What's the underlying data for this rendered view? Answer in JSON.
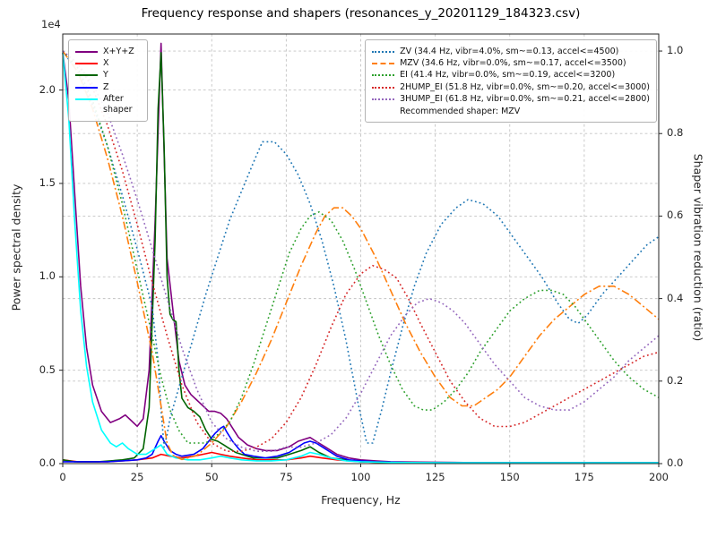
{
  "figure": {
    "title": "Frequency response and shapers (resonances_y_20201129_184323.csv)",
    "xlabel": "Frequency, Hz",
    "ylabel_left": "Power spectral density",
    "ylabel_right": "Shaper vibration reduction (ratio)",
    "offset_text": "1e4"
  },
  "legend_psd": {
    "items": [
      {
        "label": "X+Y+Z",
        "color": "#800080",
        "style": "solid"
      },
      {
        "label": "X",
        "color": "#ff0000",
        "style": "solid"
      },
      {
        "label": "Y",
        "color": "#006400",
        "style": "solid"
      },
      {
        "label": "Z",
        "color": "#0000ff",
        "style": "solid"
      },
      {
        "label": "After shaper",
        "color": "#00ffff",
        "style": "solid"
      }
    ]
  },
  "legend_shapers": {
    "items": [
      {
        "label": "ZV (34.4 Hz, vibr=4.0%, sm~=0.13, accel<=4500)",
        "color": "#1f77b4",
        "style": "dotted"
      },
      {
        "label": "MZV (34.6 Hz, vibr=0.0%, sm~=0.17, accel<=3500)",
        "color": "#ff7f0e",
        "style": "dashdot"
      },
      {
        "label": "EI (41.4 Hz, vibr=0.0%, sm~=0.19, accel<=3200)",
        "color": "#2ca02c",
        "style": "dotted"
      },
      {
        "label": "2HUMP_EI (51.8 Hz, vibr=0.0%, sm~=0.20, accel<=3000)",
        "color": "#d62728",
        "style": "dotted"
      },
      {
        "label": "3HUMP_EI (61.8 Hz, vibr=0.0%, sm~=0.21, accel<=2800)",
        "color": "#9467bd",
        "style": "dotted"
      }
    ],
    "footer": "Recommended shaper: MZV"
  },
  "chart_data": {
    "type": "line",
    "title": "Frequency response and shapers (resonances_y_20201129_184323.csv)",
    "xlabel": "Frequency, Hz",
    "ylabel_left": "Power spectral density (1e4)",
    "ylabel_right": "Shaper vibration reduction (ratio)",
    "x_range": [
      0,
      200
    ],
    "x_ticks": [
      0,
      25,
      50,
      75,
      100,
      125,
      150,
      175,
      200
    ],
    "y_left_range": [
      0,
      2.3
    ],
    "y_left_ticks": [
      0,
      0.5,
      1.0,
      1.5,
      2.0
    ],
    "y_left_scale": "1e4",
    "y_right_range": [
      0,
      1.0413
    ],
    "y_right_ticks": [
      0,
      0.2,
      0.4,
      0.6,
      0.8,
      1.0
    ],
    "grid": true,
    "series": [
      {
        "name": "X+Y+Z",
        "axis": "left",
        "color": "#800080",
        "style": "solid",
        "x": [
          0,
          2,
          4,
          6,
          8,
          10,
          13,
          16,
          19,
          21,
          23,
          25,
          27,
          29,
          31,
          33,
          35,
          37,
          39,
          41,
          43,
          45,
          47,
          49,
          51,
          53,
          55,
          57,
          59,
          62,
          65,
          68,
          72,
          76,
          79,
          81,
          83,
          85,
          88,
          92,
          96,
          100,
          105,
          110,
          120,
          140,
          170,
          200
        ],
        "y": [
          2.2,
          1.95,
          1.45,
          0.95,
          0.62,
          0.42,
          0.28,
          0.22,
          0.24,
          0.26,
          0.23,
          0.2,
          0.24,
          0.5,
          1.3,
          2.25,
          1.1,
          0.82,
          0.55,
          0.42,
          0.37,
          0.34,
          0.31,
          0.28,
          0.28,
          0.27,
          0.24,
          0.19,
          0.14,
          0.1,
          0.08,
          0.07,
          0.07,
          0.09,
          0.12,
          0.13,
          0.14,
          0.12,
          0.09,
          0.05,
          0.03,
          0.02,
          0.015,
          0.01,
          0.008,
          0.005,
          0.005,
          0.005
        ]
      },
      {
        "name": "X",
        "axis": "left",
        "color": "#ff0000",
        "style": "solid",
        "x": [
          0,
          5,
          10,
          15,
          20,
          25,
          30,
          33,
          36,
          40,
          44,
          47,
          50,
          53,
          56,
          60,
          65,
          70,
          75,
          80,
          83,
          87,
          92,
          100,
          110,
          130,
          160,
          200
        ],
        "y": [
          0.02,
          0.01,
          0.01,
          0.01,
          0.015,
          0.02,
          0.03,
          0.05,
          0.04,
          0.03,
          0.04,
          0.05,
          0.06,
          0.05,
          0.04,
          0.03,
          0.02,
          0.02,
          0.02,
          0.03,
          0.04,
          0.03,
          0.02,
          0.01,
          0.005,
          0.005,
          0.005,
          0.005
        ]
      },
      {
        "name": "Y",
        "axis": "left",
        "color": "#006400",
        "style": "solid",
        "x": [
          0,
          4,
          8,
          12,
          16,
          20,
          24,
          27,
          29,
          31,
          32,
          33,
          34,
          35,
          36,
          37,
          38,
          39,
          40,
          42,
          44,
          46,
          48,
          50,
          52,
          54,
          56,
          58,
          60,
          64,
          68,
          72,
          76,
          80,
          83,
          86,
          90,
          95,
          100,
          110,
          130,
          160,
          200
        ],
        "y": [
          0.02,
          0.01,
          0.01,
          0.01,
          0.015,
          0.02,
          0.03,
          0.08,
          0.3,
          1.2,
          1.9,
          2.2,
          1.7,
          1.0,
          0.8,
          0.77,
          0.76,
          0.5,
          0.35,
          0.3,
          0.28,
          0.25,
          0.18,
          0.13,
          0.12,
          0.1,
          0.08,
          0.06,
          0.05,
          0.03,
          0.03,
          0.03,
          0.05,
          0.07,
          0.09,
          0.06,
          0.03,
          0.02,
          0.01,
          0.005,
          0.005,
          0.005,
          0.005
        ]
      },
      {
        "name": "Z",
        "axis": "left",
        "color": "#0000ff",
        "style": "solid",
        "x": [
          0,
          5,
          10,
          15,
          20,
          25,
          28,
          30,
          32,
          33,
          34,
          36,
          38,
          40,
          44,
          47,
          49,
          51,
          53,
          54,
          55,
          57,
          59,
          61,
          64,
          68,
          72,
          76,
          79,
          81,
          83,
          85,
          88,
          92,
          96,
          100,
          105,
          110,
          120,
          140,
          170,
          200
        ],
        "y": [
          0.01,
          0.01,
          0.01,
          0.01,
          0.015,
          0.02,
          0.03,
          0.05,
          0.12,
          0.15,
          0.12,
          0.07,
          0.05,
          0.04,
          0.05,
          0.08,
          0.12,
          0.16,
          0.19,
          0.2,
          0.17,
          0.12,
          0.08,
          0.05,
          0.04,
          0.03,
          0.04,
          0.06,
          0.09,
          0.11,
          0.12,
          0.11,
          0.08,
          0.04,
          0.02,
          0.015,
          0.01,
          0.008,
          0.005,
          0.005,
          0.005,
          0.005
        ]
      },
      {
        "name": "After shaper",
        "axis": "left",
        "color": "#00ffff",
        "style": "solid",
        "x": [
          0,
          2,
          4,
          6,
          8,
          10,
          13,
          16,
          18,
          20,
          22,
          25,
          28,
          31,
          33,
          35,
          38,
          42,
          46,
          50,
          53,
          56,
          60,
          65,
          70,
          75,
          80,
          83,
          86,
          90,
          95,
          100,
          110,
          130,
          160,
          200
        ],
        "y": [
          2.2,
          1.85,
          1.3,
          0.82,
          0.52,
          0.33,
          0.18,
          0.11,
          0.09,
          0.11,
          0.08,
          0.05,
          0.05,
          0.08,
          0.1,
          0.05,
          0.03,
          0.02,
          0.02,
          0.03,
          0.04,
          0.03,
          0.02,
          0.015,
          0.015,
          0.02,
          0.04,
          0.06,
          0.05,
          0.03,
          0.015,
          0.01,
          0.006,
          0.005,
          0.005,
          0.005
        ]
      },
      {
        "name": "ZV",
        "axis": "right",
        "color": "#1f77b4",
        "style": "dotted",
        "x": [
          0,
          5,
          10,
          15,
          20,
          25,
          30,
          32,
          33,
          34,
          35,
          36,
          40,
          44,
          48,
          52,
          56,
          60,
          64,
          67,
          71,
          75,
          79,
          83,
          87,
          91,
          95,
          99,
          102,
          104,
          107,
          110,
          114,
          118,
          122,
          127,
          132,
          136,
          141,
          146,
          151,
          156,
          161,
          166,
          170,
          173,
          176,
          181,
          186,
          191,
          196,
          200
        ],
        "y": [
          1.0,
          0.95,
          0.87,
          0.77,
          0.65,
          0.52,
          0.38,
          0.25,
          0.13,
          0.04,
          0.07,
          0.11,
          0.21,
          0.31,
          0.41,
          0.5,
          0.59,
          0.66,
          0.73,
          0.78,
          0.78,
          0.75,
          0.7,
          0.63,
          0.54,
          0.43,
          0.3,
          0.15,
          0.05,
          0.05,
          0.13,
          0.22,
          0.33,
          0.43,
          0.51,
          0.58,
          0.62,
          0.64,
          0.63,
          0.6,
          0.55,
          0.5,
          0.45,
          0.39,
          0.35,
          0.34,
          0.36,
          0.41,
          0.45,
          0.49,
          0.53,
          0.55
        ]
      },
      {
        "name": "MZV",
        "axis": "right",
        "color": "#ff7f0e",
        "style": "dashdot",
        "x": [
          0,
          5,
          10,
          15,
          20,
          25,
          30,
          33,
          35,
          37,
          40,
          45,
          50,
          55,
          60,
          65,
          70,
          75,
          80,
          85,
          88,
          91,
          94,
          97,
          100,
          105,
          110,
          115,
          120,
          125,
          130,
          134,
          138,
          142,
          146,
          150,
          155,
          160,
          165,
          170,
          175,
          180,
          185,
          190,
          195,
          200
        ],
        "y": [
          1.0,
          0.95,
          0.86,
          0.74,
          0.6,
          0.44,
          0.27,
          0.14,
          0.05,
          0.02,
          0.01,
          0.02,
          0.05,
          0.09,
          0.15,
          0.22,
          0.3,
          0.39,
          0.48,
          0.56,
          0.6,
          0.62,
          0.62,
          0.6,
          0.57,
          0.5,
          0.42,
          0.34,
          0.27,
          0.21,
          0.16,
          0.14,
          0.14,
          0.16,
          0.18,
          0.21,
          0.26,
          0.31,
          0.35,
          0.38,
          0.41,
          0.43,
          0.43,
          0.41,
          0.38,
          0.35
        ]
      },
      {
        "name": "EI",
        "axis": "right",
        "color": "#2ca02c",
        "style": "dotted",
        "x": [
          0,
          5,
          10,
          15,
          20,
          25,
          30,
          33,
          36,
          39,
          42,
          45,
          48,
          52,
          56,
          60,
          64,
          68,
          72,
          76,
          80,
          83,
          86,
          90,
          94,
          98,
          102,
          106,
          110,
          114,
          118,
          121,
          124,
          128,
          132,
          136,
          140,
          145,
          150,
          155,
          160,
          164,
          168,
          172,
          176,
          180,
          185,
          190,
          195,
          200
        ],
        "y": [
          1.0,
          0.96,
          0.88,
          0.77,
          0.63,
          0.47,
          0.31,
          0.21,
          0.13,
          0.08,
          0.05,
          0.05,
          0.05,
          0.07,
          0.1,
          0.16,
          0.24,
          0.33,
          0.42,
          0.51,
          0.57,
          0.6,
          0.61,
          0.59,
          0.54,
          0.47,
          0.39,
          0.31,
          0.24,
          0.18,
          0.14,
          0.13,
          0.13,
          0.15,
          0.18,
          0.22,
          0.27,
          0.32,
          0.37,
          0.4,
          0.42,
          0.42,
          0.41,
          0.38,
          0.34,
          0.3,
          0.25,
          0.21,
          0.18,
          0.16
        ]
      },
      {
        "name": "2HUMP_EI",
        "axis": "right",
        "color": "#d62728",
        "style": "dotted",
        "x": [
          0,
          5,
          10,
          15,
          20,
          25,
          30,
          35,
          40,
          45,
          50,
          55,
          60,
          65,
          70,
          75,
          80,
          85,
          90,
          95,
          100,
          104,
          108,
          112,
          116,
          120,
          125,
          130,
          135,
          140,
          145,
          150,
          155,
          160,
          165,
          170,
          175,
          180,
          185,
          190,
          195,
          200
        ],
        "y": [
          1.0,
          0.97,
          0.91,
          0.82,
          0.71,
          0.58,
          0.44,
          0.31,
          0.19,
          0.1,
          0.05,
          0.03,
          0.03,
          0.04,
          0.06,
          0.1,
          0.16,
          0.24,
          0.33,
          0.41,
          0.46,
          0.48,
          0.47,
          0.45,
          0.4,
          0.34,
          0.27,
          0.2,
          0.15,
          0.11,
          0.09,
          0.09,
          0.1,
          0.12,
          0.14,
          0.16,
          0.18,
          0.2,
          0.22,
          0.24,
          0.26,
          0.27
        ]
      },
      {
        "name": "3HUMP_EI",
        "axis": "right",
        "color": "#9467bd",
        "style": "dotted",
        "x": [
          0,
          5,
          10,
          15,
          20,
          25,
          30,
          35,
          40,
          45,
          50,
          55,
          60,
          65,
          70,
          75,
          80,
          85,
          90,
          95,
          100,
          105,
          110,
          115,
          119,
          123,
          127,
          131,
          135,
          140,
          145,
          150,
          155,
          160,
          165,
          170,
          175,
          180,
          185,
          190,
          195,
          200
        ],
        "y": [
          1.0,
          0.97,
          0.92,
          0.85,
          0.75,
          0.64,
          0.52,
          0.4,
          0.28,
          0.18,
          0.1,
          0.06,
          0.04,
          0.03,
          0.03,
          0.04,
          0.04,
          0.05,
          0.07,
          0.11,
          0.17,
          0.24,
          0.31,
          0.36,
          0.39,
          0.4,
          0.39,
          0.37,
          0.34,
          0.29,
          0.24,
          0.2,
          0.16,
          0.14,
          0.13,
          0.13,
          0.15,
          0.18,
          0.21,
          0.25,
          0.28,
          0.31
        ]
      }
    ]
  }
}
